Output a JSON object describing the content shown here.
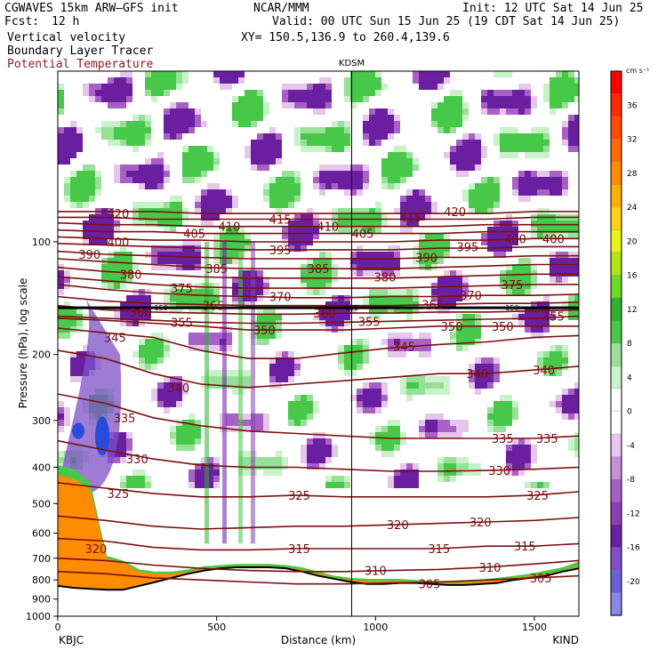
{
  "header": {
    "model": "CGWAVES 15km ARW—GFS init",
    "fcst_label": "Fcst:",
    "fcst_value": "12 h",
    "field1": "Vertical velocity",
    "field2": "Boundary Layer Tracer",
    "field3": "Potential Temperature",
    "center": "NCAR/MMM",
    "init": "Init: 12 UTC Sat 14 Jun 25",
    "valid": "Valid: 00 UTC Sun 15 Jun 25 (19 CDT Sat 14 Jun 25)",
    "xy": "XY= 150.5,136.9 to 260.4,139.6"
  },
  "colors": {
    "theta_contour": "#7a1010",
    "terrain_fill": "#ff8c00",
    "colorbar": [
      "#8a88e6",
      "#6a5fd6",
      "#7e50c8",
      "#6a1fa0",
      "#8a3fb0",
      "#a860c4",
      "#c890d8",
      "#e6c6ea",
      "#ffffff",
      "#ffffff",
      "#c8f2c8",
      "#98e098",
      "#48c848",
      "#2fb02f",
      "#6cd82a",
      "#aee61a",
      "#e6f21a",
      "#ffd21a",
      "#ffb000",
      "#ff8c00",
      "#ff6a00",
      "#ff4a00",
      "#ff2a00",
      "#ff0000"
    ]
  },
  "chart_data": {
    "type": "heatmap",
    "title": "KDSM",
    "xlabel": "Distance (km)",
    "ylabel": "Pressure (hPa), log scale",
    "x_ticks": [
      0,
      500,
      1000,
      1500
    ],
    "xlim": [
      0,
      1640
    ],
    "y_ticks": [
      100,
      200,
      300,
      400,
      500,
      600,
      700,
      800,
      900,
      1000
    ],
    "ylim": [
      1000,
      35
    ],
    "y_scale": "log",
    "left_station": "KBJC",
    "right_station": "KIND",
    "marker_station": "KDSM",
    "marker_x": 925,
    "tropopause_label": "150",
    "colorbar": {
      "units": "cm s⁻¹",
      "ticks": [
        -20,
        -16,
        -12,
        -8,
        -4,
        0,
        4,
        8,
        12,
        16,
        20,
        24,
        28,
        32,
        36
      ]
    },
    "theta_contours": [
      {
        "theta": 305,
        "p": [
          760,
          770,
          790,
          800,
          810,
          820,
          820,
          815,
          810,
          800,
          790,
          780
        ]
      },
      {
        "theta": 310,
        "p": [
          700,
          710,
          730,
          745,
          755,
          760,
          760,
          755,
          750,
          740,
          725,
          710
        ]
      },
      {
        "theta": 315,
        "p": [
          620,
          630,
          655,
          665,
          665,
          660,
          660,
          660,
          660,
          650,
          650,
          640
        ]
      },
      {
        "theta": 320,
        "p": [
          540,
          555,
          575,
          585,
          580,
          575,
          575,
          570,
          565,
          560,
          555,
          545
        ]
      },
      {
        "theta": 325,
        "p": [
          440,
          455,
          470,
          480,
          480,
          475,
          480,
          480,
          480,
          480,
          475,
          465
        ]
      },
      {
        "theta": 330,
        "p": [
          340,
          360,
          380,
          395,
          400,
          400,
          405,
          410,
          410,
          408,
          405,
          400
        ]
      },
      {
        "theta": 335,
        "p": [
          255,
          270,
          295,
          310,
          320,
          325,
          330,
          335,
          335,
          335,
          335,
          330
        ]
      },
      {
        "theta": 340,
        "p": [
          195,
          205,
          225,
          240,
          245,
          240,
          235,
          230,
          225,
          225,
          220,
          215
        ]
      },
      {
        "theta": 345,
        "p": [
          170,
          175,
          180,
          195,
          205,
          205,
          198,
          192,
          188,
          185,
          180,
          178
        ]
      },
      {
        "theta": 350,
        "p": [
          160,
          162,
          165,
          168,
          172,
          172,
          172,
          170,
          168,
          168,
          168,
          168
        ]
      },
      {
        "theta": 355,
        "p": [
          158,
          160,
          162,
          164,
          165,
          165,
          164,
          163,
          162,
          161,
          160,
          158
        ]
      },
      {
        "theta": 360,
        "p": [
          148,
          152,
          154,
          155,
          156,
          156,
          155,
          155,
          154,
          154,
          153,
          152
        ]
      },
      {
        "theta": 365,
        "p": [
          140,
          144,
          146,
          147,
          148,
          148,
          148,
          148,
          147,
          146,
          146,
          145
        ]
      },
      {
        "theta": 370,
        "p": [
          130,
          134,
          137,
          139,
          140,
          141,
          141,
          140,
          140,
          139,
          139,
          138
        ]
      },
      {
        "theta": 375,
        "p": [
          124,
          127,
          130,
          132,
          133,
          133,
          133,
          133,
          132,
          131,
          130,
          130
        ]
      },
      {
        "theta": 380,
        "p": [
          117,
          120,
          122,
          124,
          125,
          125,
          125,
          125,
          124,
          123,
          122,
          122
        ]
      },
      {
        "theta": 385,
        "p": [
          111,
          113,
          115,
          117,
          118,
          118,
          118,
          118,
          117,
          116,
          115,
          115
        ]
      },
      {
        "theta": 390,
        "p": [
          106,
          108,
          109,
          110,
          111,
          111,
          111,
          111,
          110,
          110,
          109,
          109
        ]
      },
      {
        "theta": 395,
        "p": [
          101,
          102,
          103,
          104,
          105,
          105,
          105,
          105,
          104,
          104,
          103,
          103
        ]
      },
      {
        "theta": 400,
        "p": [
          97,
          98,
          99,
          99,
          100,
          100,
          100,
          100,
          99,
          99,
          98,
          98
        ]
      },
      {
        "theta": 405,
        "p": [
          93,
          94,
          94,
          95,
          95,
          95,
          95,
          95,
          95,
          94,
          94,
          94
        ]
      },
      {
        "theta": 410,
        "p": [
          89,
          90,
          90,
          91,
          91,
          91,
          91,
          91,
          91,
          90,
          90,
          90
        ]
      },
      {
        "theta": 415,
        "p": [
          86,
          86,
          87,
          87,
          87,
          87,
          87,
          87,
          87,
          87,
          86,
          86
        ]
      },
      {
        "theta": 420,
        "p": [
          83,
          83,
          83,
          84,
          84,
          84,
          84,
          84,
          84,
          84,
          83,
          83
        ]
      }
    ],
    "contour_x": [
      0,
      150,
      300,
      450,
      600,
      750,
      900,
      1050,
      1200,
      1350,
      1500,
      1640
    ],
    "contour_labels": [
      {
        "text": "420",
        "x": 190,
        "p": 84
      },
      {
        "text": "415",
        "x": 700,
        "p": 87
      },
      {
        "text": "420",
        "x": 1250,
        "p": 83
      },
      {
        "text": "415",
        "x": 1110,
        "p": 86
      },
      {
        "text": "410",
        "x": 540,
        "p": 91
      },
      {
        "text": "410",
        "x": 850,
        "p": 91
      },
      {
        "text": "405",
        "x": 430,
        "p": 95
      },
      {
        "text": "405",
        "x": 960,
        "p": 95
      },
      {
        "text": "400",
        "x": 190,
        "p": 100
      },
      {
        "text": "400",
        "x": 1440,
        "p": 98
      },
      {
        "text": "400",
        "x": 1560,
        "p": 98
      },
      {
        "text": "395",
        "x": 700,
        "p": 105
      },
      {
        "text": "395",
        "x": 1290,
        "p": 103
      },
      {
        "text": "390",
        "x": 100,
        "p": 108
      },
      {
        "text": "390",
        "x": 1160,
        "p": 110
      },
      {
        "text": "385",
        "x": 500,
        "p": 118
      },
      {
        "text": "385",
        "x": 820,
        "p": 118
      },
      {
        "text": "380",
        "x": 230,
        "p": 122
      },
      {
        "text": "380",
        "x": 1030,
        "p": 124
      },
      {
        "text": "375",
        "x": 390,
        "p": 133
      },
      {
        "text": "375",
        "x": 1430,
        "p": 130
      },
      {
        "text": "370",
        "x": 700,
        "p": 140
      },
      {
        "text": "370",
        "x": 1300,
        "p": 139
      },
      {
        "text": "365",
        "x": 490,
        "p": 148
      },
      {
        "text": "365",
        "x": 1180,
        "p": 147
      },
      {
        "text": "360",
        "x": 260,
        "p": 154
      },
      {
        "text": "360",
        "x": 840,
        "p": 155
      },
      {
        "text": "355",
        "x": 390,
        "p": 164
      },
      {
        "text": "355",
        "x": 980,
        "p": 163
      },
      {
        "text": "355",
        "x": 1560,
        "p": 158
      },
      {
        "text": "350",
        "x": 650,
        "p": 172
      },
      {
        "text": "350",
        "x": 1240,
        "p": 168
      },
      {
        "text": "350",
        "x": 1400,
        "p": 168
      },
      {
        "text": "345",
        "x": 180,
        "p": 180
      },
      {
        "text": "345",
        "x": 1090,
        "p": 190
      },
      {
        "text": "340",
        "x": 380,
        "p": 245
      },
      {
        "text": "340",
        "x": 1320,
        "p": 225
      },
      {
        "text": "340",
        "x": 1530,
        "p": 220
      },
      {
        "text": "335",
        "x": 210,
        "p": 295
      },
      {
        "text": "335",
        "x": 1400,
        "p": 335
      },
      {
        "text": "335",
        "x": 1540,
        "p": 335
      },
      {
        "text": "330",
        "x": 250,
        "p": 380
      },
      {
        "text": "330",
        "x": 1390,
        "p": 408
      },
      {
        "text": "325",
        "x": 190,
        "p": 470
      },
      {
        "text": "325",
        "x": 760,
        "p": 475
      },
      {
        "text": "325",
        "x": 1510,
        "p": 475
      },
      {
        "text": "320",
        "x": 120,
        "p": 660
      },
      {
        "text": "320",
        "x": 1070,
        "p": 570
      },
      {
        "text": "320",
        "x": 1330,
        "p": 560
      },
      {
        "text": "315",
        "x": 760,
        "p": 660
      },
      {
        "text": "315",
        "x": 1200,
        "p": 660
      },
      {
        "text": "315",
        "x": 1470,
        "p": 650
      },
      {
        "text": "310",
        "x": 1000,
        "p": 755
      },
      {
        "text": "310",
        "x": 1360,
        "p": 740
      },
      {
        "text": "305",
        "x": 1170,
        "p": 820
      },
      {
        "text": "305",
        "x": 1520,
        "p": 790
      }
    ],
    "terrain_surface_p": [
      830,
      840,
      845,
      850,
      850,
      830,
      810,
      790,
      770,
      755,
      745,
      740,
      740,
      740,
      745,
      760,
      780,
      795,
      810,
      820,
      820,
      815,
      815,
      820,
      825,
      825,
      820,
      815,
      800,
      790,
      780,
      760,
      745
    ],
    "terrain_top_p": [
      420,
      430,
      460,
      700,
      720,
      760,
      770,
      770,
      760,
      745,
      740,
      735,
      735,
      735,
      740,
      750,
      770,
      790,
      800,
      805,
      805,
      805,
      810,
      815,
      815,
      812,
      808,
      800,
      790,
      780,
      770,
      755,
      735
    ],
    "boundary_layer_p": [
      395,
      405,
      440,
      690,
      710,
      750,
      760,
      760,
      750,
      735,
      730,
      725,
      725,
      725,
      730,
      740,
      760,
      780,
      790,
      795,
      795,
      795,
      800,
      805,
      805,
      802,
      798,
      790,
      780,
      770,
      755,
      740,
      715
    ]
  }
}
